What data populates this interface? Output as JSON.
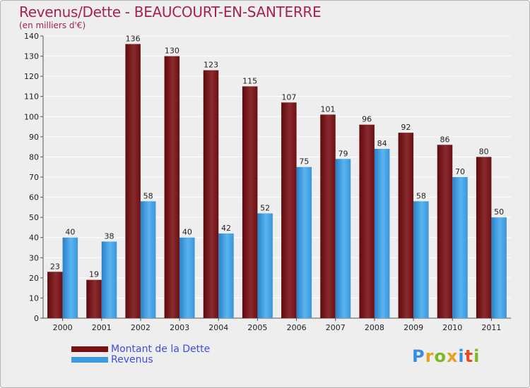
{
  "chart_data": {
    "type": "bar",
    "title": "Revenus/Dette - BEAUCOURT-EN-SANTERRE",
    "subtitle": "(en milliers d'€)",
    "categories": [
      "2000",
      "2001",
      "2002",
      "2003",
      "2004",
      "2005",
      "2006",
      "2007",
      "2008",
      "2009",
      "2010",
      "2011"
    ],
    "series": [
      {
        "name": "Montant de la Dette",
        "values": [
          23,
          19,
          136,
          130,
          123,
          115,
          107,
          101,
          96,
          92,
          86,
          80
        ],
        "color": "#7a0f14"
      },
      {
        "name": "Revenus",
        "values": [
          40,
          38,
          58,
          40,
          42,
          52,
          75,
          79,
          84,
          58,
          70,
          50
        ],
        "color": "#3a9ce0"
      }
    ],
    "yticks": [
      0,
      10,
      20,
      30,
      40,
      50,
      60,
      70,
      80,
      90,
      100,
      110,
      120,
      130,
      140
    ],
    "ylim": [
      0,
      140
    ],
    "grid": true,
    "legend_position": "bottom-left"
  },
  "logo": {
    "letters": [
      "P",
      "r",
      "o",
      "x",
      "i",
      "t",
      "i"
    ],
    "colors": [
      "#3a8ee0",
      "#e8a020",
      "#7ab82a",
      "#e8a020",
      "#3a8ee0",
      "#e84a20",
      "#7ab82a"
    ]
  }
}
